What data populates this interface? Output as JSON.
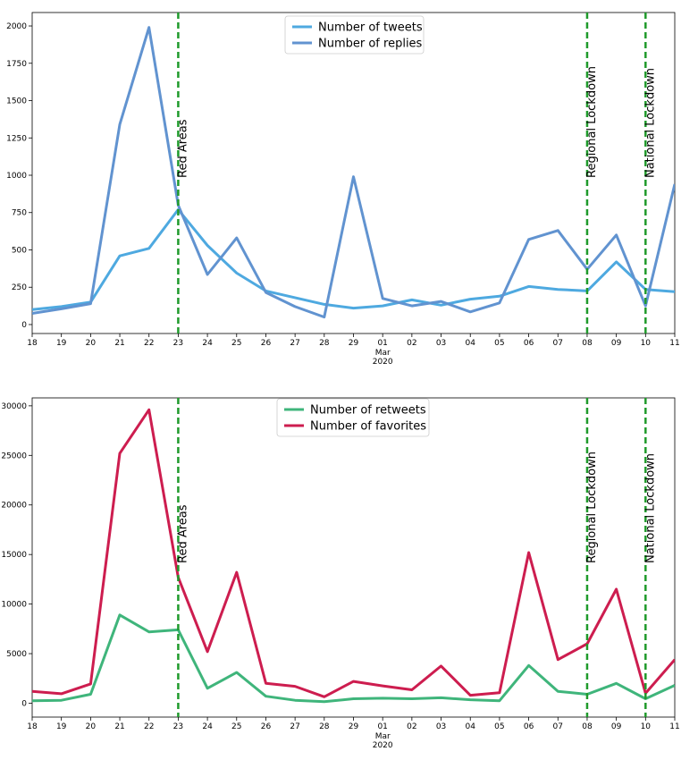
{
  "chart_data": [
    {
      "type": "line",
      "categories": [
        "18",
        "19",
        "20",
        "21",
        "22",
        "23",
        "24",
        "25",
        "26",
        "27",
        "28",
        "29",
        "01",
        "02",
        "03",
        "04",
        "05",
        "06",
        "07",
        "08",
        "09",
        "10",
        "11"
      ],
      "month_label": "Mar",
      "year_label": "2020",
      "month_label_under": "01",
      "yticks": [
        "0",
        "250",
        "500",
        "750",
        "1000",
        "1250",
        "1500",
        "1750",
        "2000"
      ],
      "ylim": [
        -60,
        2090
      ],
      "series": [
        {
          "name": "Number of tweets",
          "color": "#4ea9e0",
          "values": [
            100,
            120,
            150,
            460,
            510,
            770,
            530,
            345,
            225,
            180,
            135,
            110,
            125,
            165,
            130,
            170,
            190,
            255,
            235,
            225,
            420,
            235,
            220
          ]
        },
        {
          "name": "Number of replies",
          "color": "#6193d0",
          "values": [
            75,
            105,
            140,
            1340,
            1990,
            800,
            335,
            580,
            215,
            120,
            50,
            990,
            175,
            125,
            155,
            85,
            145,
            570,
            630,
            370,
            600,
            125,
            940
          ]
        }
      ],
      "legend": {
        "placement": "upper-center"
      },
      "events": [
        {
          "label": "Red Areas",
          "x_index": 5
        },
        {
          "label": "Regional Lockdown",
          "x_index": 19
        },
        {
          "label": "National Lockdown",
          "x_index": 21
        }
      ],
      "event_color": "#1f9a2b"
    },
    {
      "type": "line",
      "categories": [
        "18",
        "19",
        "20",
        "21",
        "22",
        "23",
        "24",
        "25",
        "26",
        "27",
        "28",
        "29",
        "01",
        "02",
        "03",
        "04",
        "05",
        "06",
        "07",
        "08",
        "09",
        "10",
        "11"
      ],
      "month_label": "Mar",
      "year_label": "2020",
      "month_label_under": "01",
      "yticks": [
        "0",
        "5000",
        "10000",
        "15000",
        "20000",
        "25000",
        "30000"
      ],
      "ylim": [
        -1400,
        30800
      ],
      "series": [
        {
          "name": "Number of retweets",
          "color": "#3fb57b",
          "values": [
            250,
            300,
            900,
            8900,
            7200,
            7400,
            1500,
            3100,
            700,
            300,
            150,
            450,
            500,
            450,
            550,
            350,
            250,
            3800,
            1200,
            900,
            2000,
            450,
            1800
          ]
        },
        {
          "name": "Number of favorites",
          "color": "#cd1d4f",
          "values": [
            1200,
            950,
            1950,
            25200,
            29600,
            12700,
            5200,
            13200,
            2000,
            1700,
            650,
            2200,
            1750,
            1350,
            3750,
            800,
            1050,
            15200,
            4400,
            6000,
            11500,
            1000,
            4400
          ]
        }
      ],
      "legend": {
        "placement": "upper-center"
      },
      "events": [
        {
          "label": "Red Areas",
          "x_index": 5
        },
        {
          "label": "Regional Lockdown",
          "x_index": 19
        },
        {
          "label": "National Lockdown",
          "x_index": 21
        }
      ],
      "event_color": "#1f9a2b"
    }
  ]
}
